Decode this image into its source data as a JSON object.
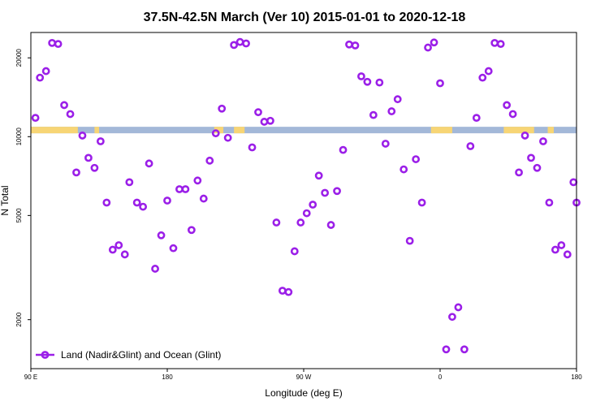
{
  "chart_data": {
    "type": "scatter",
    "title": "37.5N-42.5N March (Ver 10)   2015-01-01 to 2020-12-18",
    "xlabel": "Longitude (deg E)",
    "ylabel": "N Total",
    "xlim": [
      90,
      450
    ],
    "ylim_log": [
      1300,
      25000
    ],
    "y_scale": "log",
    "x_ticks": [
      {
        "value": 90,
        "label": "90 E"
      },
      {
        "value": 180,
        "label": "180"
      },
      {
        "value": 270,
        "label": "90 W"
      },
      {
        "value": 360,
        "label": "0"
      },
      {
        "value": 450,
        "label": "180"
      }
    ],
    "y_ticks": [
      {
        "value": 2000,
        "label": "2000"
      },
      {
        "value": 5000,
        "label": "5000"
      },
      {
        "value": 10000,
        "label": "10000"
      },
      {
        "value": 20000,
        "label": "20000"
      }
    ],
    "marker_color": "#9b1fe8",
    "land_color": "#f7d575",
    "ocean_color": "#a3b8d8",
    "surface_band": {
      "y_value": 10600,
      "land_segments": [
        [
          90,
          121
        ],
        [
          132,
          135
        ],
        [
          211,
          217
        ],
        [
          224,
          231
        ],
        [
          354,
          368
        ],
        [
          402,
          422
        ],
        [
          431,
          435
        ]
      ]
    },
    "legend": {
      "label": "Land (Nadir&Glint) and Ocean (Glint)",
      "position": "bottom-left"
    },
    "series": [
      {
        "name": "Land (Nadir&Glint) and Ocean (Glint)",
        "points": [
          [
            93,
            11800
          ],
          [
            96,
            16800
          ],
          [
            100,
            17800
          ],
          [
            104,
            22800
          ],
          [
            108,
            22600
          ],
          [
            112,
            13200
          ],
          [
            116,
            12200
          ],
          [
            120,
            7300
          ],
          [
            124,
            10100
          ],
          [
            128,
            8300
          ],
          [
            132,
            7600
          ],
          [
            136,
            9600
          ],
          [
            140,
            5600
          ],
          [
            144,
            3700
          ],
          [
            148,
            3850
          ],
          [
            152,
            3550
          ],
          [
            155,
            6700
          ],
          [
            160,
            5600
          ],
          [
            164,
            5400
          ],
          [
            168,
            7900
          ],
          [
            172,
            3130
          ],
          [
            176,
            4200
          ],
          [
            180,
            5700
          ],
          [
            184,
            3750
          ],
          [
            188,
            6300
          ],
          [
            192,
            6300
          ],
          [
            196,
            4400
          ],
          [
            200,
            6800
          ],
          [
            204,
            5800
          ],
          [
            208,
            8100
          ],
          [
            212,
            10300
          ],
          [
            216,
            12800
          ],
          [
            220,
            9900
          ],
          [
            224,
            22400
          ],
          [
            228,
            23000
          ],
          [
            232,
            22700
          ],
          [
            236,
            9100
          ],
          [
            240,
            12400
          ],
          [
            244,
            11400
          ],
          [
            248,
            11500
          ],
          [
            252,
            4700
          ],
          [
            256,
            2580
          ],
          [
            260,
            2550
          ],
          [
            264,
            3650
          ],
          [
            268,
            4700
          ],
          [
            272,
            5100
          ],
          [
            276,
            5500
          ],
          [
            280,
            7100
          ],
          [
            284,
            6100
          ],
          [
            288,
            4600
          ],
          [
            292,
            6200
          ],
          [
            296,
            8900
          ],
          [
            300,
            22500
          ],
          [
            304,
            22300
          ],
          [
            308,
            17000
          ],
          [
            312,
            16200
          ],
          [
            316,
            12100
          ],
          [
            320,
            16100
          ],
          [
            324,
            9400
          ],
          [
            328,
            12500
          ],
          [
            332,
            13900
          ],
          [
            336,
            7500
          ],
          [
            340,
            4000
          ],
          [
            344,
            8200
          ],
          [
            348,
            5600
          ],
          [
            352,
            21900
          ],
          [
            356,
            22900
          ],
          [
            360,
            16000
          ],
          [
            364,
            1540
          ],
          [
            368,
            2050
          ],
          [
            372,
            2230
          ],
          [
            376,
            1540
          ],
          [
            380,
            9200
          ],
          [
            384,
            11800
          ],
          [
            388,
            16800
          ],
          [
            392,
            17800
          ],
          [
            396,
            22800
          ],
          [
            400,
            22600
          ],
          [
            404,
            13200
          ],
          [
            408,
            12200
          ],
          [
            412,
            7300
          ],
          [
            416,
            10100
          ],
          [
            420,
            8300
          ],
          [
            424,
            7600
          ],
          [
            428,
            9600
          ],
          [
            432,
            5600
          ],
          [
            436,
            3700
          ],
          [
            440,
            3850
          ],
          [
            444,
            3550
          ],
          [
            448,
            6700
          ],
          [
            450,
            5600
          ]
        ]
      }
    ]
  }
}
